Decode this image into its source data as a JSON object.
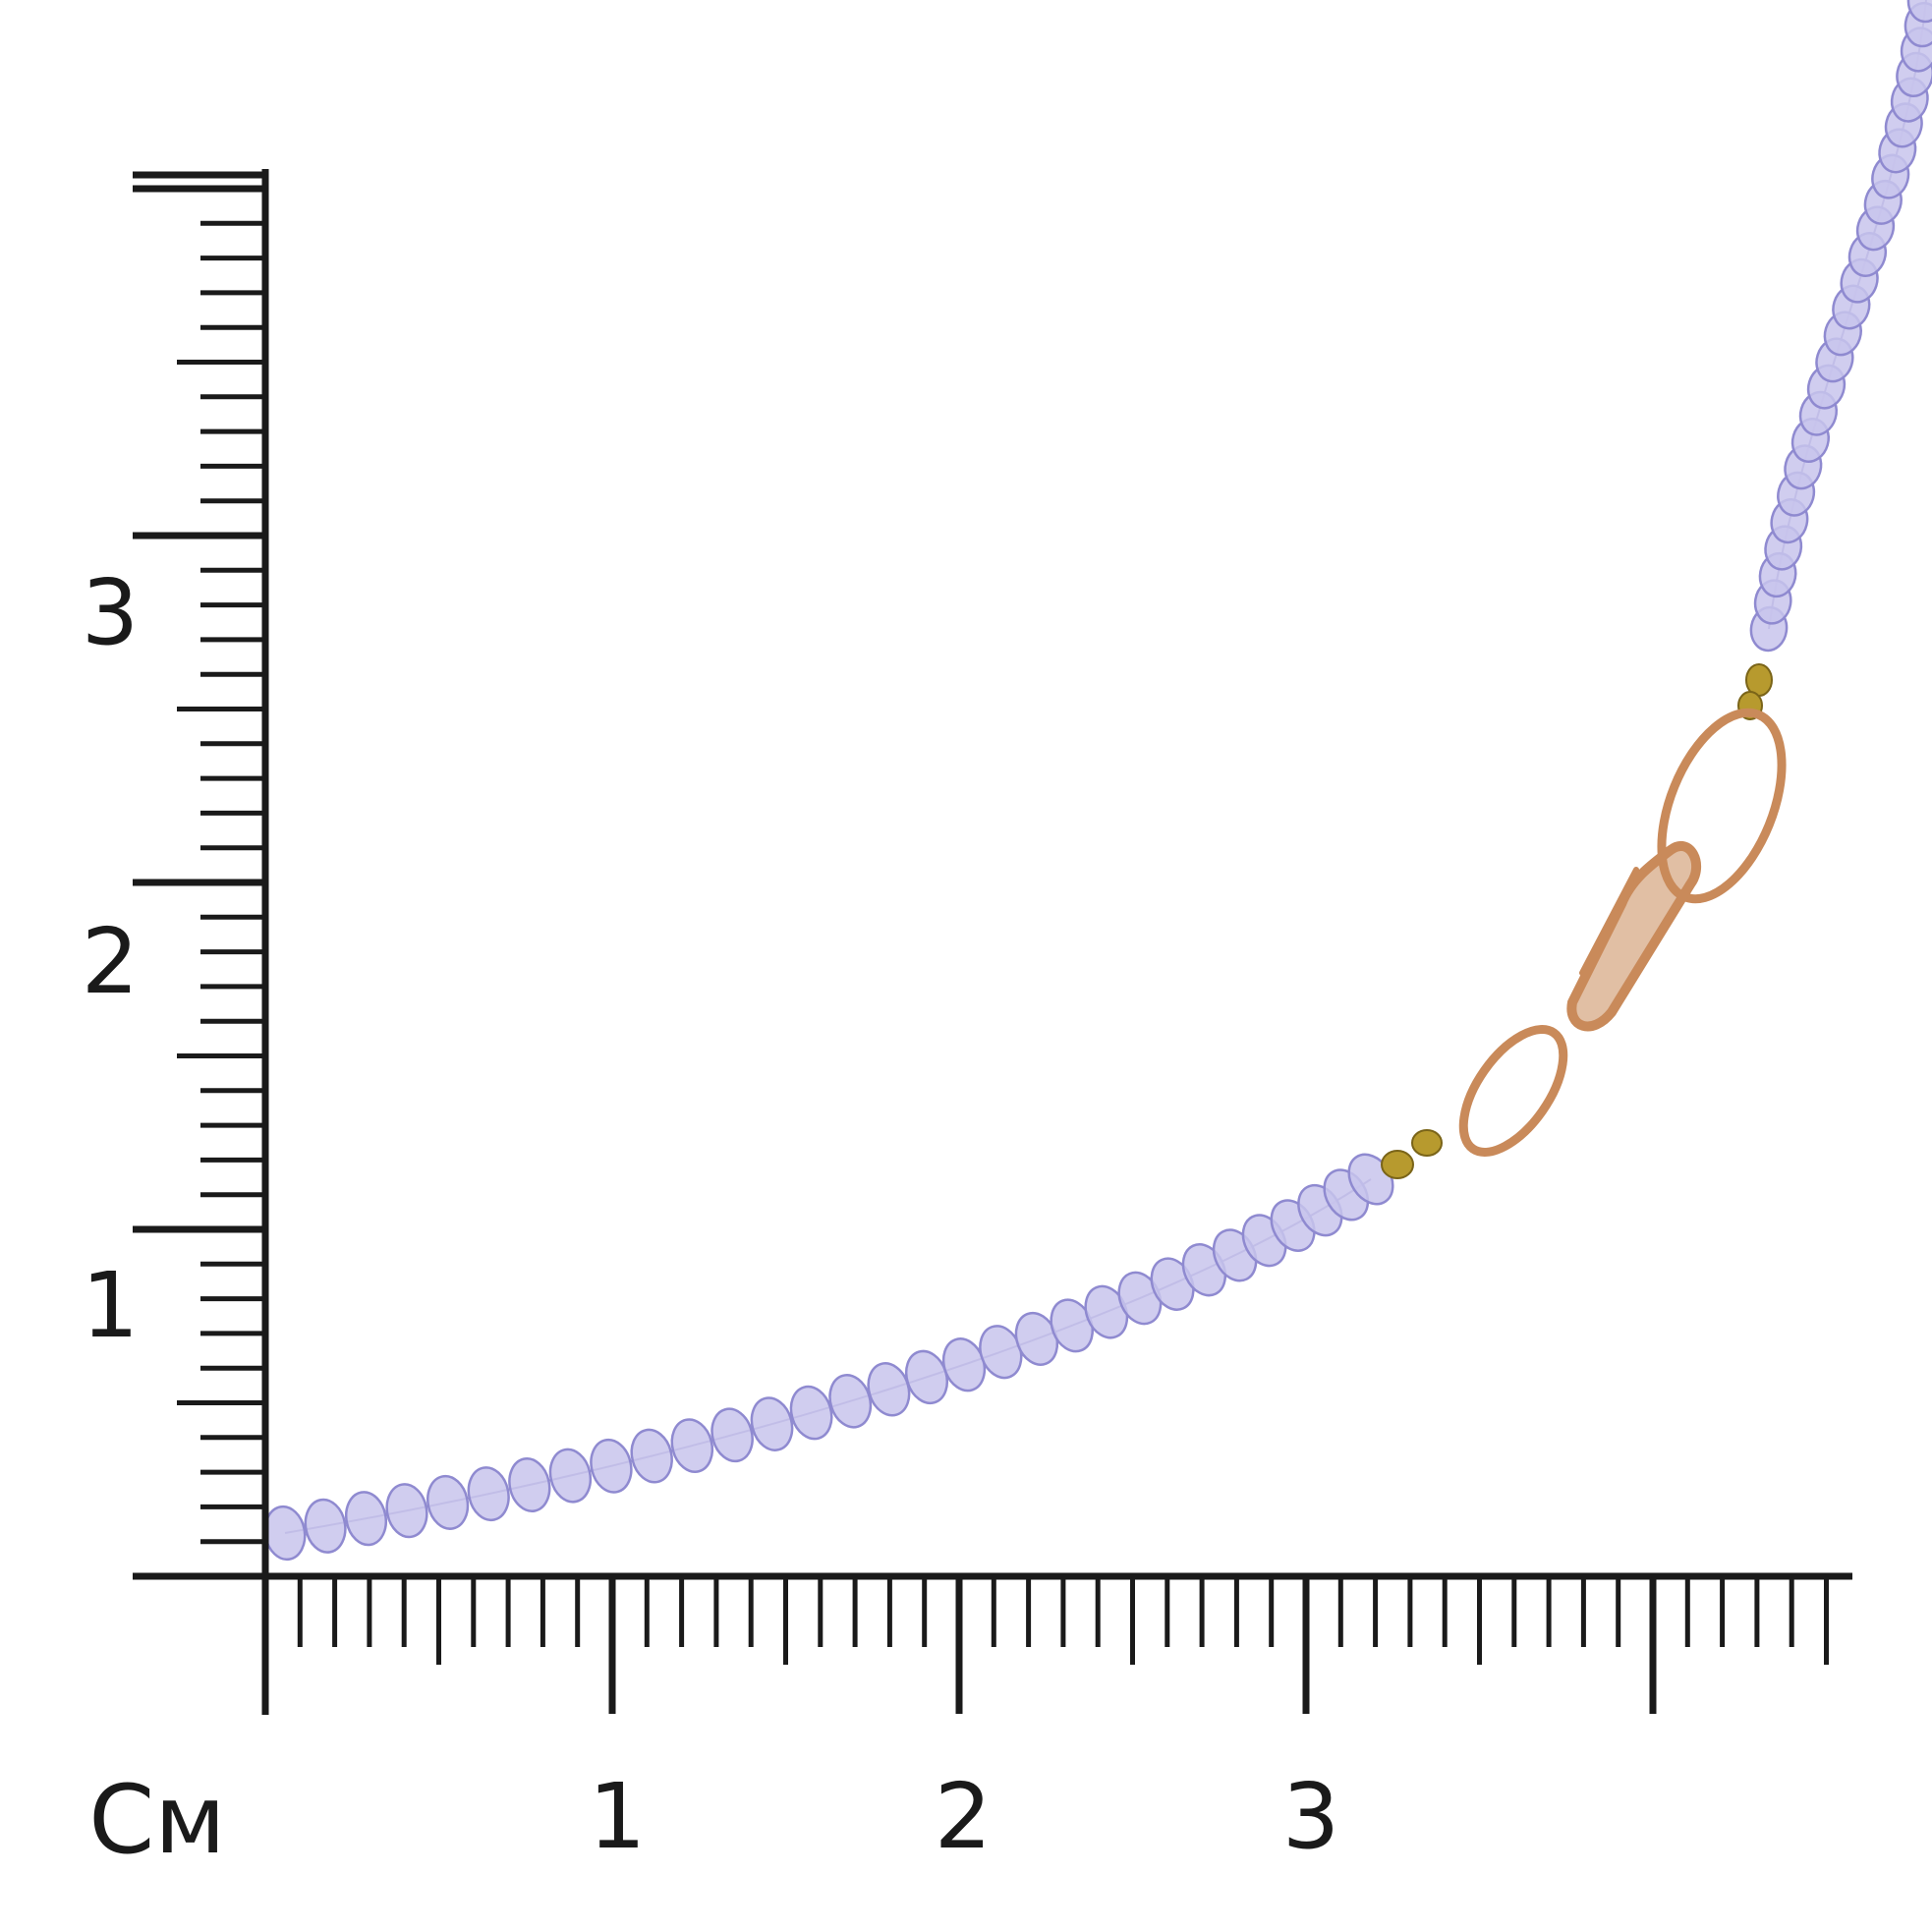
{
  "ruler": {
    "unit_label": "См",
    "x_labels": [
      "1",
      "2",
      "3"
    ],
    "y_labels": [
      "1",
      "2",
      "3"
    ],
    "x_cm_max": 4.5,
    "y_cm_max": 4.0,
    "line_color": "#1a1a1a"
  },
  "necklace": {
    "bead_color": "#c8c4ec",
    "bead_edge_color": "#8f8ad0",
    "spacer_color": "#b79a2e",
    "clasp_color": "#c98a5a"
  }
}
